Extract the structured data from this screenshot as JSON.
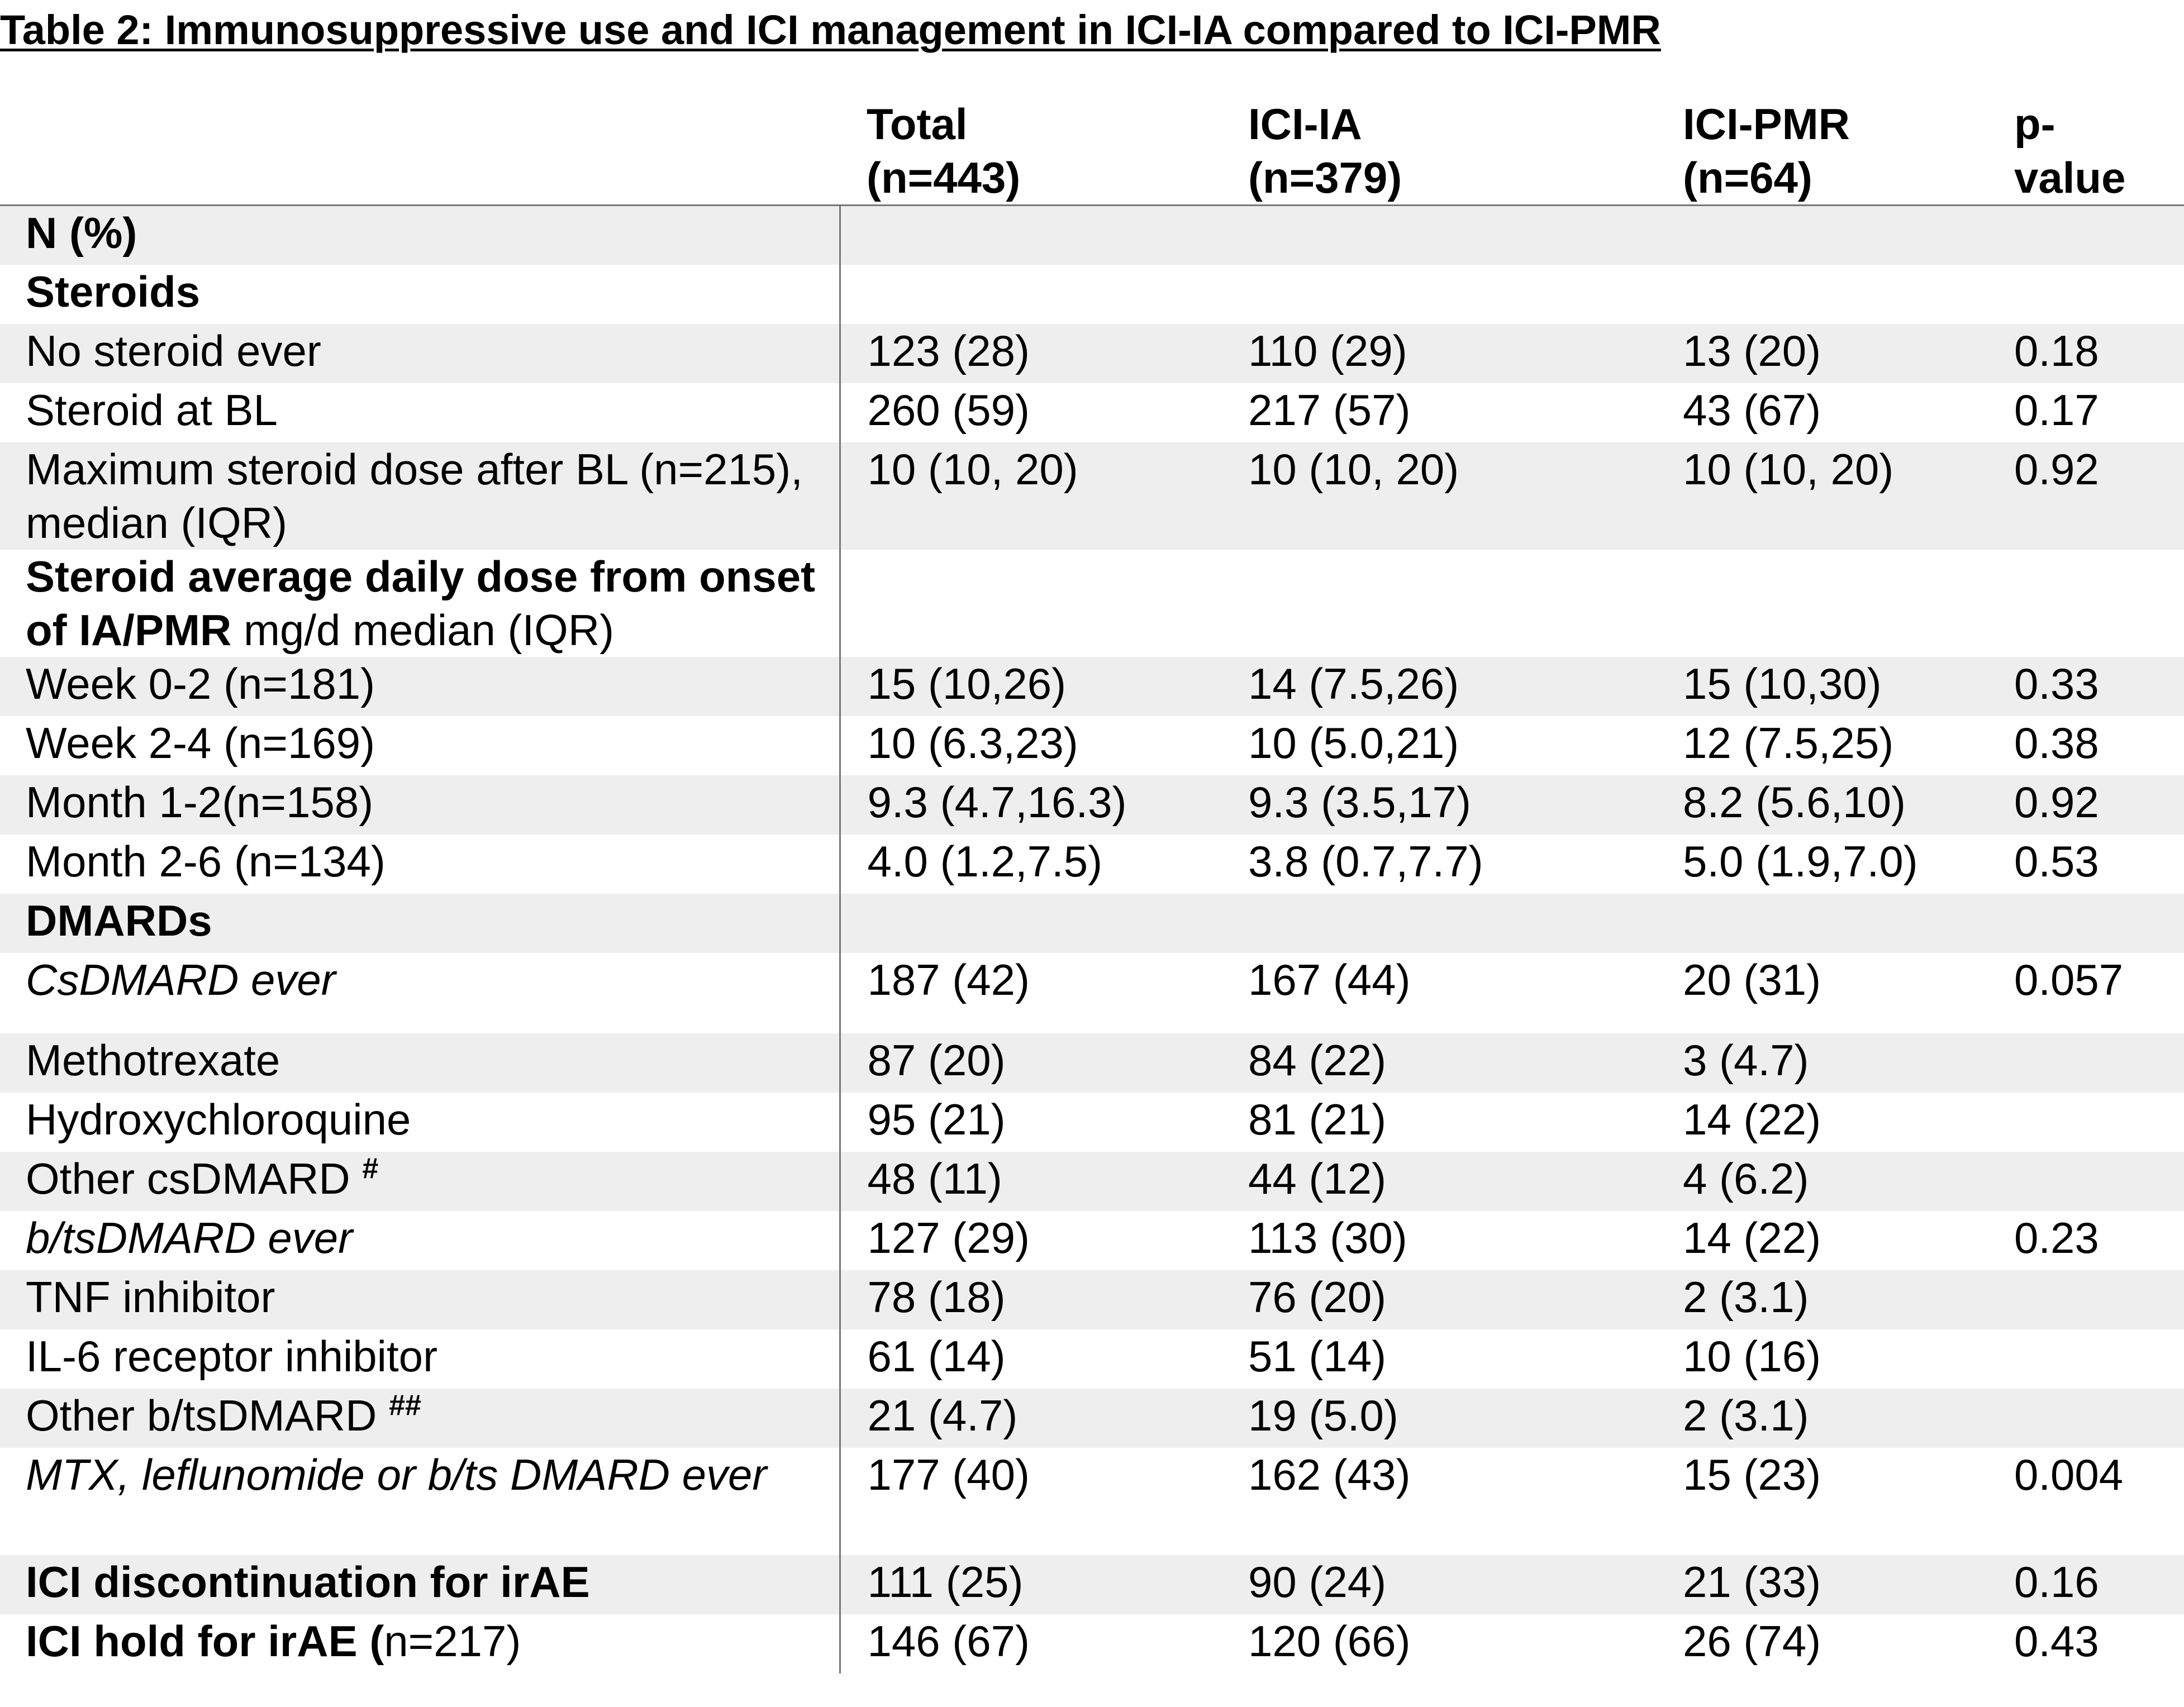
{
  "title": "Table 2: Immunosuppressive use and ICI management in ICI-IA compared to ICI-PMR",
  "columns": [
    {
      "line1": "",
      "line2": ""
    },
    {
      "line1": "Total",
      "line2": "(n=443)"
    },
    {
      "line1": "ICI-IA",
      "line2": "(n=379)"
    },
    {
      "line1": "ICI-PMR",
      "line2": "(n=64)"
    },
    {
      "line1": "p-",
      "line2": "value"
    }
  ],
  "rows": [
    {
      "style": "bold",
      "label": "N (%)",
      "label_extra": "",
      "sup": "",
      "total": "",
      "ia": "",
      "pmr": "",
      "p": ""
    },
    {
      "style": "bold",
      "label": "Steroids",
      "label_extra": "",
      "sup": "",
      "total": "",
      "ia": "",
      "pmr": "",
      "p": ""
    },
    {
      "style": "normal",
      "label": "No steroid ever",
      "label_extra": "",
      "sup": "",
      "total": "123 (28)",
      "ia": "110 (29)",
      "pmr": "13 (20)",
      "p": "0.18"
    },
    {
      "style": "normal",
      "label": "Steroid at BL",
      "label_extra": "",
      "sup": "",
      "total": "260 (59)",
      "ia": "217 (57)",
      "pmr": "43 (67)",
      "p": "0.17"
    },
    {
      "style": "normal",
      "label": "Maximum steroid dose after BL (n=215), median (IQR)",
      "label_extra": "",
      "sup": "",
      "total": "10 (10, 20)",
      "ia": "10 (10, 20)",
      "pmr": "10 (10, 20)",
      "p": "0.92"
    },
    {
      "style": "bold",
      "label": "Steroid average daily dose from onset of IA/PMR",
      "label_extra": " mg/d median (IQR)",
      "sup": "",
      "total": "",
      "ia": "",
      "pmr": "",
      "p": ""
    },
    {
      "style": "normal",
      "label": "Week 0-2 (n=181)",
      "label_extra": "",
      "sup": "",
      "total": "15 (10,26)",
      "ia": "14 (7.5,26)",
      "pmr": "15 (10,30)",
      "p": "0.33"
    },
    {
      "style": "normal",
      "label": "Week 2-4 (n=169)",
      "label_extra": "",
      "sup": "",
      "total": "10 (6.3,23)",
      "ia": "10 (5.0,21)",
      "pmr": "12 (7.5,25)",
      "p": "0.38"
    },
    {
      "style": "normal",
      "label": "Month 1-2(n=158)",
      "label_extra": "",
      "sup": "",
      "total": "9.3 (4.7,16.3)",
      "ia": "9.3 (3.5,17)",
      "pmr": "8.2 (5.6,10)",
      "p": "0.92"
    },
    {
      "style": "normal",
      "label": "Month 2-6 (n=134)",
      "label_extra": "",
      "sup": "",
      "total": "4.0 (1.2,7.5)",
      "ia": "3.8 (0.7,7.7)",
      "pmr": "5.0 (1.9,7.0)",
      "p": "0.53"
    },
    {
      "style": "bold",
      "label": "DMARDs",
      "label_extra": "",
      "sup": "",
      "total": "",
      "ia": "",
      "pmr": "",
      "p": ""
    },
    {
      "style": "italic",
      "label": "CsDMARD ever",
      "label_extra": "",
      "sup": "",
      "total": "187 (42)",
      "ia": "167 (44)",
      "pmr": "20 (31)",
      "p": "0.057"
    },
    {
      "style": "normal",
      "label": "Methotrexate",
      "label_extra": "",
      "sup": "",
      "total": "87 (20)",
      "ia": "84 (22)",
      "pmr": "3 (4.7)",
      "p": ""
    },
    {
      "style": "normal",
      "label": "Hydroxychloroquine",
      "label_extra": "",
      "sup": "",
      "total": "95 (21)",
      "ia": "81 (21)",
      "pmr": "14 (22)",
      "p": ""
    },
    {
      "style": "normal",
      "label": "Other csDMARD ",
      "label_extra": "",
      "sup": "#",
      "total": "48 (11)",
      "ia": "44 (12)",
      "pmr": "4 (6.2)",
      "p": ""
    },
    {
      "style": "italic",
      "label": "b/tsDMARD ever",
      "label_extra": "",
      "sup": "",
      "total": "127 (29)",
      "ia": "113 (30)",
      "pmr": "14 (22)",
      "p": "0.23"
    },
    {
      "style": "normal",
      "label": "TNF inhibitor",
      "label_extra": "",
      "sup": "",
      "total": "78 (18)",
      "ia": "76 (20)",
      "pmr": "2 (3.1)",
      "p": ""
    },
    {
      "style": "normal",
      "label": "IL-6 receptor inhibitor",
      "label_extra": "",
      "sup": "",
      "total": "61 (14)",
      "ia": "51 (14)",
      "pmr": "10 (16)",
      "p": ""
    },
    {
      "style": "normal",
      "label": "Other b/tsDMARD ",
      "label_extra": "",
      "sup": "##",
      "total": "21 (4.7)",
      "ia": "19 (5.0)",
      "pmr": "2 (3.1)",
      "p": ""
    },
    {
      "style": "italic",
      "label": "MTX, leflunomide or b/ts DMARD ever",
      "label_extra": "",
      "sup": "",
      "total": "177 (40)",
      "ia": "162 (43)",
      "pmr": "15 (23)",
      "p": "0.004"
    },
    {
      "style": "bold",
      "label": "ICI discontinuation for irAE",
      "label_extra": "",
      "sup": "",
      "total": "111 (25)",
      "ia": "90 (24)",
      "pmr": "21 (33)",
      "p": "0.16"
    },
    {
      "style": "bold",
      "label": "ICI hold for irAE (",
      "label_extra": "n=217)",
      "sup": "",
      "total": "146 (67)",
      "ia": "120 (66)",
      "pmr": "26 (74)",
      "p": "0.43"
    }
  ]
}
